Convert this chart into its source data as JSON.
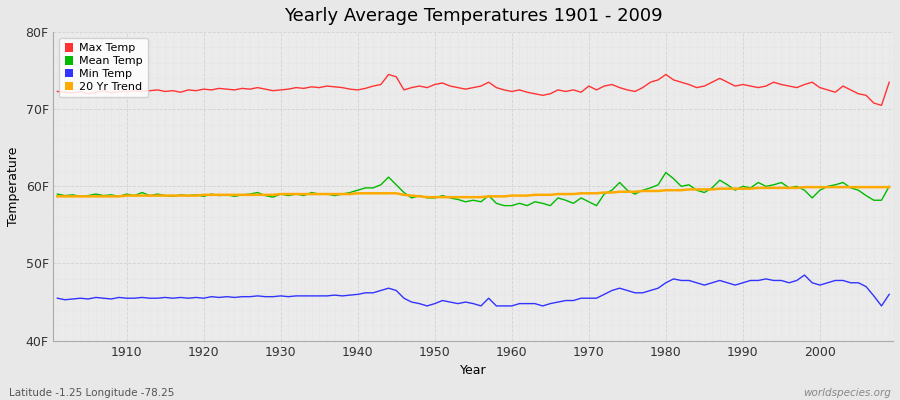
{
  "title": "Yearly Average Temperatures 1901 - 2009",
  "xlabel": "Year",
  "ylabel": "Temperature",
  "years": [
    1901,
    1902,
    1903,
    1904,
    1905,
    1906,
    1907,
    1908,
    1909,
    1910,
    1911,
    1912,
    1913,
    1914,
    1915,
    1916,
    1917,
    1918,
    1919,
    1920,
    1921,
    1922,
    1923,
    1924,
    1925,
    1926,
    1927,
    1928,
    1929,
    1930,
    1931,
    1932,
    1933,
    1934,
    1935,
    1936,
    1937,
    1938,
    1939,
    1940,
    1941,
    1942,
    1943,
    1944,
    1945,
    1946,
    1947,
    1948,
    1949,
    1950,
    1951,
    1952,
    1953,
    1954,
    1955,
    1956,
    1957,
    1958,
    1959,
    1960,
    1961,
    1962,
    1963,
    1964,
    1965,
    1966,
    1967,
    1968,
    1969,
    1970,
    1971,
    1972,
    1973,
    1974,
    1975,
    1976,
    1977,
    1978,
    1979,
    1980,
    1981,
    1982,
    1983,
    1984,
    1985,
    1986,
    1987,
    1988,
    1989,
    1990,
    1991,
    1992,
    1993,
    1994,
    1995,
    1996,
    1997,
    1998,
    1999,
    2000,
    2001,
    2002,
    2003,
    2004,
    2005,
    2006,
    2007,
    2008,
    2009
  ],
  "max_temp": [
    72.3,
    72.2,
    72.1,
    72.3,
    72.0,
    72.2,
    72.4,
    72.1,
    72.3,
    72.3,
    72.4,
    72.3,
    72.4,
    72.5,
    72.3,
    72.4,
    72.2,
    72.5,
    72.4,
    72.6,
    72.5,
    72.7,
    72.6,
    72.5,
    72.7,
    72.6,
    72.8,
    72.6,
    72.4,
    72.5,
    72.6,
    72.8,
    72.7,
    72.9,
    72.8,
    73.0,
    72.9,
    72.8,
    72.6,
    72.5,
    72.7,
    73.0,
    73.2,
    74.5,
    74.2,
    72.5,
    72.8,
    73.0,
    72.8,
    73.2,
    73.4,
    73.0,
    72.8,
    72.6,
    72.8,
    73.0,
    73.5,
    72.8,
    72.5,
    72.3,
    72.5,
    72.2,
    72.0,
    71.8,
    72.0,
    72.5,
    72.3,
    72.5,
    72.2,
    73.0,
    72.5,
    73.0,
    73.2,
    72.8,
    72.5,
    72.3,
    72.8,
    73.5,
    73.8,
    74.5,
    73.8,
    73.5,
    73.2,
    72.8,
    73.0,
    73.5,
    74.0,
    73.5,
    73.0,
    73.2,
    73.0,
    72.8,
    73.0,
    73.5,
    73.2,
    73.0,
    72.8,
    73.2,
    73.5,
    72.8,
    72.5,
    72.2,
    73.0,
    72.5,
    72.0,
    71.8,
    70.8,
    70.5,
    73.5
  ],
  "mean_temp": [
    59.0,
    58.8,
    58.9,
    58.7,
    58.8,
    59.0,
    58.8,
    58.9,
    58.7,
    59.0,
    58.8,
    59.2,
    58.8,
    59.0,
    58.8,
    58.7,
    58.9,
    58.8,
    58.9,
    58.7,
    59.0,
    58.8,
    58.9,
    58.7,
    58.9,
    59.0,
    59.2,
    58.8,
    58.6,
    59.0,
    58.8,
    59.0,
    58.8,
    59.2,
    59.0,
    59.0,
    58.8,
    59.0,
    59.2,
    59.5,
    59.8,
    59.8,
    60.2,
    61.2,
    60.2,
    59.2,
    58.5,
    58.8,
    58.5,
    58.5,
    58.8,
    58.5,
    58.3,
    58.0,
    58.2,
    58.0,
    58.8,
    57.8,
    57.5,
    57.5,
    57.8,
    57.5,
    58.0,
    57.8,
    57.5,
    58.5,
    58.2,
    57.8,
    58.5,
    58.0,
    57.5,
    59.0,
    59.5,
    60.5,
    59.5,
    59.0,
    59.5,
    59.8,
    60.2,
    61.8,
    61.0,
    60.0,
    60.2,
    59.5,
    59.2,
    59.8,
    60.8,
    60.2,
    59.5,
    60.0,
    59.8,
    60.5,
    60.0,
    60.2,
    60.5,
    59.8,
    60.0,
    59.5,
    58.5,
    59.5,
    60.0,
    60.2,
    60.5,
    59.8,
    59.5,
    58.8,
    58.2,
    58.2,
    60.0
  ],
  "min_temp": [
    45.5,
    45.3,
    45.4,
    45.5,
    45.4,
    45.6,
    45.5,
    45.4,
    45.6,
    45.5,
    45.5,
    45.6,
    45.5,
    45.5,
    45.6,
    45.5,
    45.6,
    45.5,
    45.6,
    45.5,
    45.7,
    45.6,
    45.7,
    45.6,
    45.7,
    45.7,
    45.8,
    45.7,
    45.7,
    45.8,
    45.7,
    45.8,
    45.8,
    45.8,
    45.8,
    45.8,
    45.9,
    45.8,
    45.9,
    46.0,
    46.2,
    46.2,
    46.5,
    46.8,
    46.5,
    45.5,
    45.0,
    44.8,
    44.5,
    44.8,
    45.2,
    45.0,
    44.8,
    45.0,
    44.8,
    44.5,
    45.5,
    44.5,
    44.5,
    44.5,
    44.8,
    44.8,
    44.8,
    44.5,
    44.8,
    45.0,
    45.2,
    45.2,
    45.5,
    45.5,
    45.5,
    46.0,
    46.5,
    46.8,
    46.5,
    46.2,
    46.2,
    46.5,
    46.8,
    47.5,
    48.0,
    47.8,
    47.8,
    47.5,
    47.2,
    47.5,
    47.8,
    47.5,
    47.2,
    47.5,
    47.8,
    47.8,
    48.0,
    47.8,
    47.8,
    47.5,
    47.8,
    48.5,
    47.5,
    47.2,
    47.5,
    47.8,
    47.8,
    47.5,
    47.5,
    47.0,
    45.8,
    44.5,
    46.0
  ],
  "trend": [
    58.7,
    58.7,
    58.7,
    58.7,
    58.7,
    58.7,
    58.7,
    58.7,
    58.7,
    58.8,
    58.8,
    58.8,
    58.8,
    58.8,
    58.8,
    58.8,
    58.8,
    58.8,
    58.8,
    58.9,
    58.9,
    58.9,
    58.9,
    58.9,
    58.9,
    58.9,
    58.9,
    58.9,
    58.9,
    59.0,
    59.0,
    59.0,
    59.0,
    59.0,
    59.0,
    59.0,
    59.0,
    59.0,
    59.0,
    59.1,
    59.1,
    59.1,
    59.1,
    59.1,
    59.1,
    58.9,
    58.8,
    58.7,
    58.6,
    58.6,
    58.6,
    58.6,
    58.6,
    58.6,
    58.6,
    58.6,
    58.7,
    58.7,
    58.7,
    58.8,
    58.8,
    58.8,
    58.9,
    58.9,
    58.9,
    59.0,
    59.0,
    59.0,
    59.1,
    59.1,
    59.1,
    59.2,
    59.2,
    59.3,
    59.3,
    59.3,
    59.4,
    59.4,
    59.4,
    59.5,
    59.5,
    59.5,
    59.6,
    59.6,
    59.6,
    59.6,
    59.7,
    59.7,
    59.7,
    59.7,
    59.7,
    59.8,
    59.8,
    59.8,
    59.8,
    59.8,
    59.8,
    59.9,
    59.9,
    59.9,
    59.9,
    59.9,
    59.9,
    59.9,
    59.9,
    59.9,
    59.9,
    59.9,
    59.9
  ],
  "ylim": [
    40,
    80
  ],
  "yticks": [
    40,
    50,
    60,
    70,
    80
  ],
  "ytick_labels": [
    "40F",
    "50F",
    "60F",
    "70F",
    "80F"
  ],
  "bg_color": "#e8e8e8",
  "plot_bg_color": "#ebebeb",
  "grid_color": "#cccccc",
  "max_color": "#ff3333",
  "mean_color": "#00bb00",
  "min_color": "#3333ff",
  "trend_color": "#ffaa00",
  "footer_left": "Latitude -1.25 Longitude -78.25",
  "footer_right": "worldspecies.org",
  "legend_labels": [
    "Max Temp",
    "Mean Temp",
    "Min Temp",
    "20 Yr Trend"
  ]
}
